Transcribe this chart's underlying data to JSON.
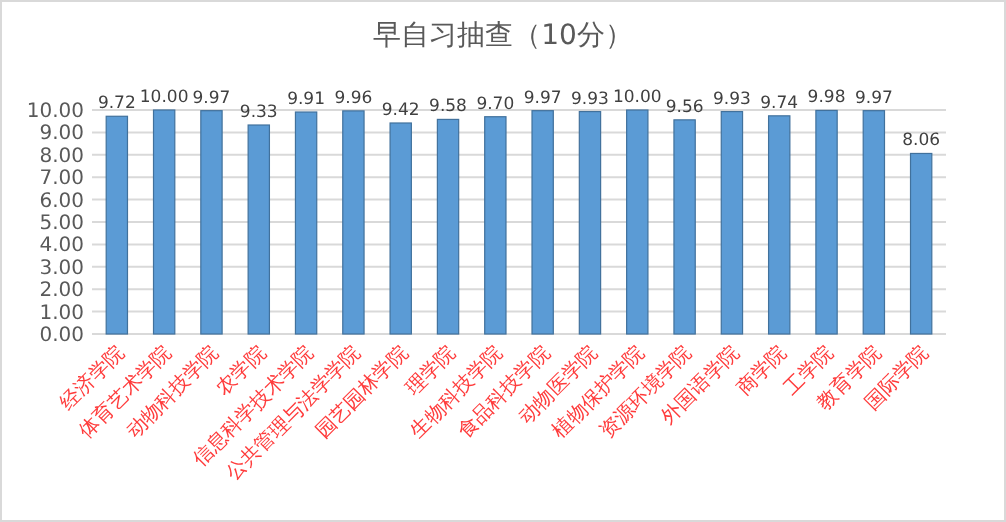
{
  "chart_data": {
    "type": "bar",
    "title": "早自习抽查（10分）",
    "categories": [
      "经济学院",
      "体育艺术学院",
      "动物科技学院",
      "农学院",
      "信息科学技术学院",
      "公共管理与法学学院",
      "园艺园林学院",
      "理学院",
      "生物科技学院",
      "食品科技学院",
      "动物医学院",
      "植物保护学院",
      "资源环境学院",
      "外国语学院",
      "商学院",
      "工学院",
      "教育学院",
      "国际学院"
    ],
    "values": [
      9.72,
      10.0,
      9.97,
      9.33,
      9.91,
      9.96,
      9.42,
      9.58,
      9.7,
      9.97,
      9.93,
      10.0,
      9.56,
      9.93,
      9.74,
      9.98,
      9.97,
      8.06
    ],
    "value_labels": [
      "9.72",
      "10.00",
      "9.97",
      "9.33",
      "9.91",
      "9.96",
      "9.42",
      "9.58",
      "9.70",
      "9.97",
      "9.93",
      "10.00",
      "9.56",
      "9.93",
      "9.74",
      "9.98",
      "9.97",
      "8.06"
    ],
    "color": "#5b9bd5",
    "ylim": [
      0,
      10
    ],
    "yticks": [
      {
        "value": 0,
        "label": "0.00"
      },
      {
        "value": 1,
        "label": "1.00"
      },
      {
        "value": 2,
        "label": "2.00"
      },
      {
        "value": 3,
        "label": "3.00"
      },
      {
        "value": 4,
        "label": "4.00"
      },
      {
        "value": 5,
        "label": "5.00"
      },
      {
        "value": 6,
        "label": "6.00"
      },
      {
        "value": 7,
        "label": "7.00"
      },
      {
        "value": 8,
        "label": "8.00"
      },
      {
        "value": 9,
        "label": "9.00"
      },
      {
        "value": 10,
        "label": "10.00"
      }
    ],
    "grid": true
  }
}
